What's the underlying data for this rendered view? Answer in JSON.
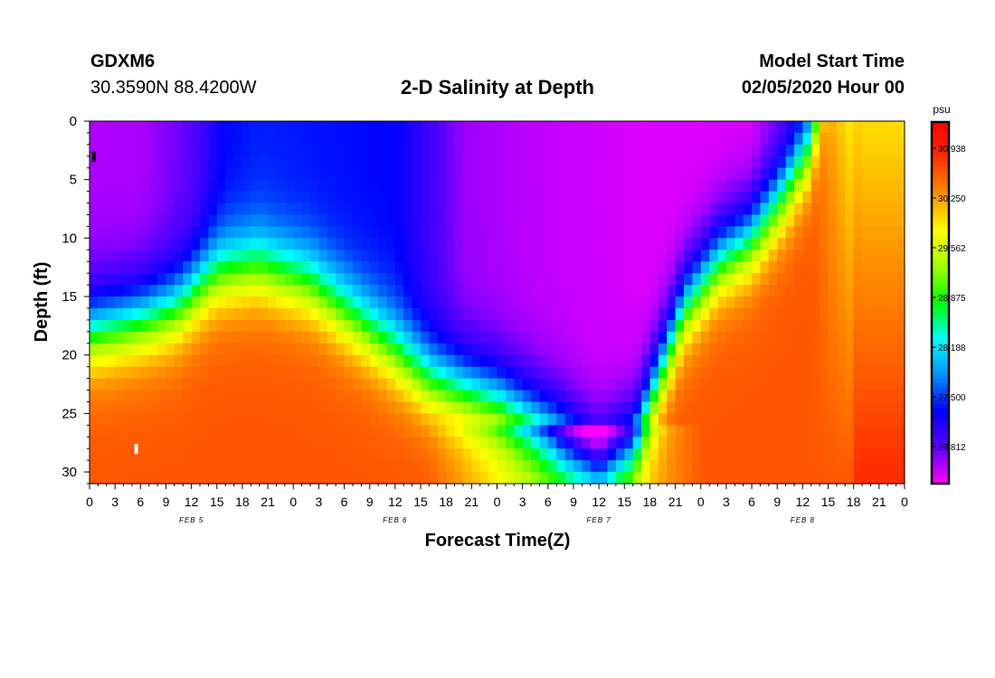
{
  "header": {
    "station": "GDXM6",
    "location": "30.3590N 88.4200W",
    "title": "2-D Salinity at Depth",
    "start_label": "Model Start Time",
    "start_value": "02/05/2020 Hour 00"
  },
  "chart_data": {
    "type": "heatmap",
    "title": "2-D Salinity at Depth",
    "xlabel": "Forecast Time(Z)",
    "ylabel": "Depth (ft)",
    "x_range_hours": [
      0,
      96
    ],
    "y_range": [
      0,
      31
    ],
    "y_ticks": [
      "0",
      "5",
      "10",
      "15",
      "20",
      "25",
      "30"
    ],
    "x_ticks": [
      "0",
      "3",
      "6",
      "9",
      "12",
      "15",
      "18",
      "21",
      "0",
      "3",
      "6",
      "9",
      "12",
      "15",
      "18",
      "21",
      "0",
      "3",
      "6",
      "9",
      "12",
      "15",
      "18",
      "21",
      "0",
      "3",
      "6",
      "9",
      "12",
      "15",
      "18",
      "21",
      "0"
    ],
    "date_labels": [
      {
        "text": "FEB 5",
        "hour": 12
      },
      {
        "text": "FEB 6",
        "hour": 36
      },
      {
        "text": "FEB 7",
        "hour": 60
      },
      {
        "text": "FEB 8",
        "hour": 84
      }
    ],
    "colorbar": {
      "unit": "psu",
      "range": [
        26.3,
        31.3
      ],
      "ticks": [
        "30.938",
        "30.250",
        "29.562",
        "28.875",
        "28.188",
        "27.500",
        "26.812"
      ],
      "colors": [
        "#ff00ff",
        "#5a00ff",
        "#0000ff",
        "#0090ff",
        "#00ffff",
        "#00ff00",
        "#a0ff00",
        "#ffff00",
        "#ff9000",
        "#ff3000",
        "#ff0000"
      ]
    },
    "markers": [
      {
        "hour": 0.5,
        "depth": 3,
        "color": "#000000"
      },
      {
        "hour": 5.5,
        "depth": 28,
        "color": "#ffffff"
      }
    ]
  }
}
